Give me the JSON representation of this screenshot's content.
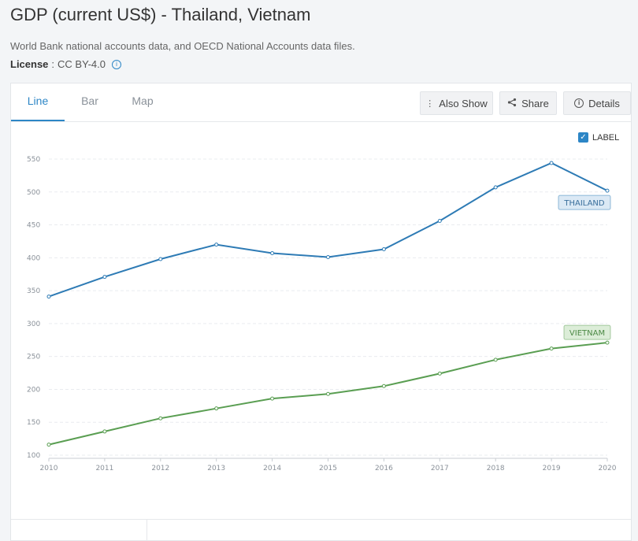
{
  "page": {
    "title": "GDP (current US$) - Thailand, Vietnam",
    "source": "World Bank national accounts data, and OECD National Accounts data files.",
    "license_key": "License",
    "license_value": "CC BY-4.0"
  },
  "tabs": [
    {
      "label": "Line",
      "active": true
    },
    {
      "label": "Bar",
      "active": false
    },
    {
      "label": "Map",
      "active": false
    }
  ],
  "toolbar": {
    "also_show": "Also Show",
    "share": "Share",
    "details": "Details"
  },
  "label_toggle": {
    "label": "LABEL",
    "checked": true
  },
  "chart_data": {
    "type": "line",
    "x": [
      2010,
      2011,
      2012,
      2013,
      2014,
      2015,
      2016,
      2017,
      2018,
      2019,
      2020
    ],
    "y_ticks": [
      100,
      150,
      200,
      250,
      300,
      350,
      400,
      450,
      500,
      550
    ],
    "ylim": [
      95,
      560
    ],
    "grid": true,
    "series": [
      {
        "name": "THAILAND",
        "color": "#2e7bb5",
        "label_bg": "#dbe9f5",
        "values": [
          341,
          371,
          398,
          420,
          407,
          401,
          413,
          456,
          507,
          544,
          502
        ]
      },
      {
        "name": "VIETNAM",
        "color": "#5a9e52",
        "label_bg": "#dcedd8",
        "values": [
          116,
          136,
          156,
          171,
          186,
          193,
          205,
          224,
          245,
          262,
          271
        ]
      }
    ]
  }
}
